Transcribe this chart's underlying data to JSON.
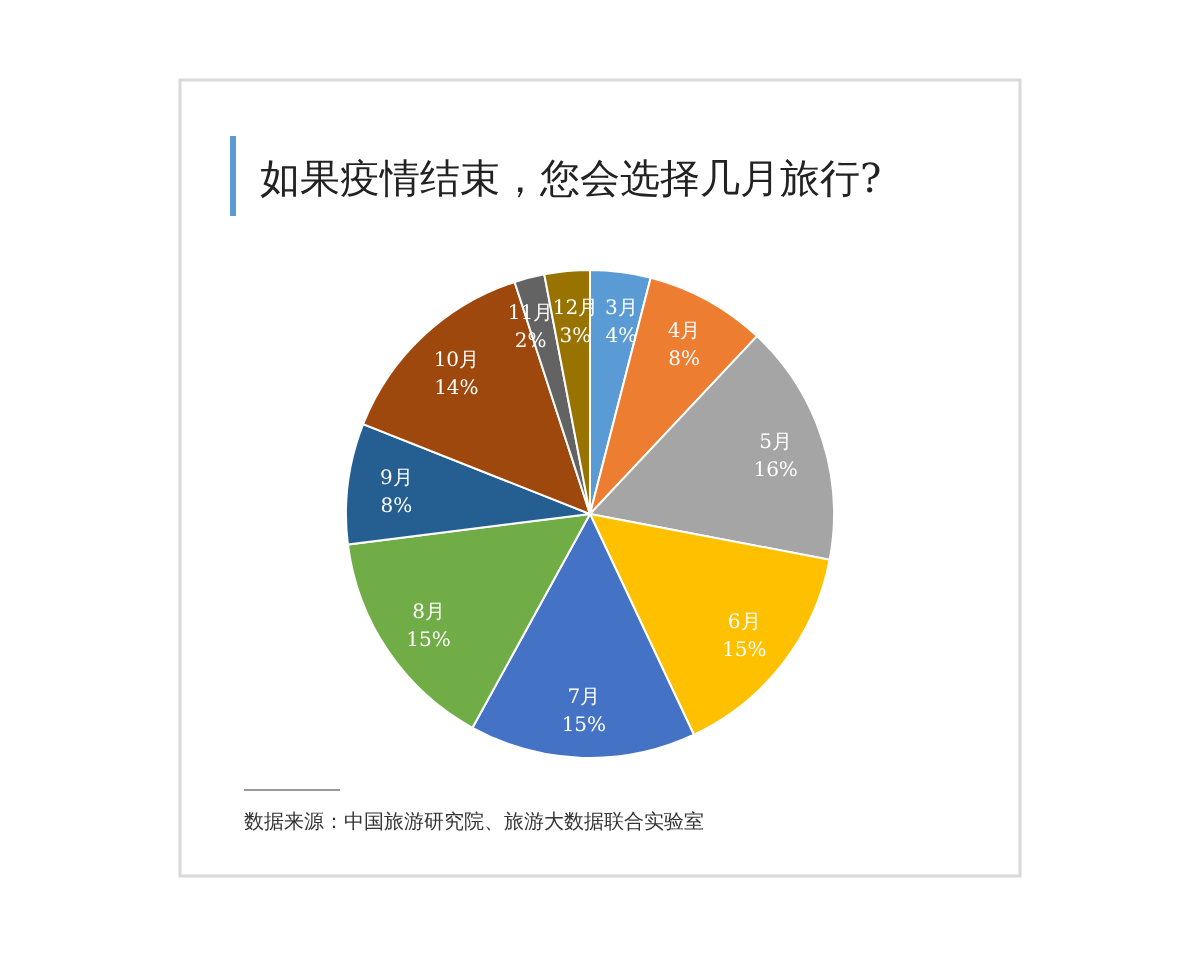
{
  "chart_data": {
    "type": "pie",
    "title": "如果疫情结束，您会选择几月旅行?",
    "categories": [
      "3月",
      "4月",
      "5月",
      "6月",
      "7月",
      "8月",
      "9月",
      "10月",
      "11月",
      "12月"
    ],
    "values": [
      4,
      8,
      16,
      15,
      15,
      15,
      8,
      14,
      2,
      3
    ],
    "colors": [
      "#5b9bd5",
      "#ed7d31",
      "#a5a5a5",
      "#ffc000",
      "#4472c4",
      "#70ad47",
      "#255e91",
      "#9e480e",
      "#636363",
      "#997300"
    ],
    "value_labels": [
      "4%",
      "8%",
      "16%",
      "15%",
      "15%",
      "15%",
      "8%",
      "14%",
      "2%",
      "3%"
    ],
    "annotations": [
      "数据来源：中国旅游研究院、旅游大数据联合实验室"
    ]
  }
}
